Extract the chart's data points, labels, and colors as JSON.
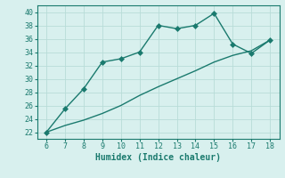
{
  "xlabel": "Humidex (Indice chaleur)",
  "x_line1": [
    6,
    7,
    8,
    9,
    10,
    11,
    12,
    13,
    14,
    15,
    16,
    17,
    18
  ],
  "y_line1": [
    22,
    25.5,
    28.5,
    32.5,
    33,
    34,
    38,
    37.5,
    38,
    39.8,
    35.2,
    33.8,
    35.8
  ],
  "x_line2": [
    6,
    7,
    8,
    9,
    10,
    11,
    12,
    13,
    14,
    15,
    16,
    17,
    18
  ],
  "y_line2": [
    22,
    23,
    23.8,
    24.8,
    26,
    27.5,
    28.8,
    30,
    31.2,
    32.5,
    33.5,
    34.2,
    35.8
  ],
  "line_color": "#1a7a6e",
  "bg_color": "#d8f0ee",
  "grid_color": "#b8dcd8",
  "xlim": [
    5.5,
    18.5
  ],
  "ylim": [
    21,
    41
  ],
  "xticks": [
    6,
    7,
    8,
    9,
    10,
    11,
    12,
    13,
    14,
    15,
    16,
    17,
    18
  ],
  "yticks": [
    22,
    24,
    26,
    28,
    30,
    32,
    34,
    36,
    38,
    40
  ],
  "markersize": 3,
  "linewidth": 1.0,
  "tick_fontsize": 6.0,
  "label_fontsize": 7.0
}
